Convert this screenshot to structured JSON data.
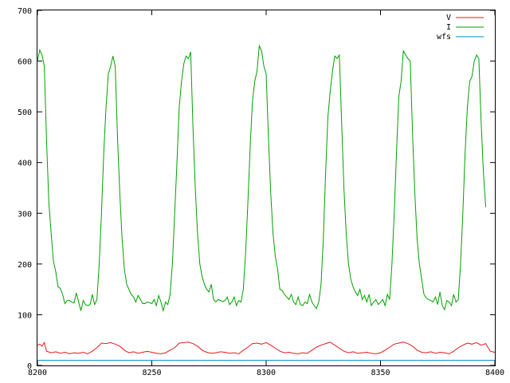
{
  "chart_data": {
    "type": "line",
    "title": "",
    "xlabel": "",
    "ylabel": "",
    "xlim": [
      8200,
      8400
    ],
    "ylim": [
      0,
      700
    ],
    "grid": false,
    "legend_position": "top-right",
    "x_ticks": [
      8200,
      8250,
      8300,
      8350,
      8400
    ],
    "y_ticks": [
      0,
      100,
      200,
      300,
      400,
      500,
      600,
      700
    ],
    "x_tick_labels": [
      "8200",
      "8250",
      "8300",
      "8350",
      "8400"
    ],
    "y_tick_labels": [
      "0",
      "100",
      "200",
      "300",
      "400",
      "500",
      "600",
      "700"
    ],
    "series": [
      {
        "name": "V",
        "color": "#e41a1c",
        "points": [
          [
            8200,
            40
          ],
          [
            8201,
            42
          ],
          [
            8202,
            38
          ],
          [
            8203,
            45
          ],
          [
            8204,
            28
          ],
          [
            8206,
            25
          ],
          [
            8208,
            27
          ],
          [
            8210,
            24
          ],
          [
            8212,
            26
          ],
          [
            8214,
            23
          ],
          [
            8216,
            25
          ],
          [
            8218,
            24
          ],
          [
            8220,
            26
          ],
          [
            8222,
            23
          ],
          [
            8224,
            28
          ],
          [
            8226,
            35
          ],
          [
            8228,
            44
          ],
          [
            8230,
            43
          ],
          [
            8232,
            45
          ],
          [
            8234,
            42
          ],
          [
            8236,
            38
          ],
          [
            8238,
            30
          ],
          [
            8240,
            25
          ],
          [
            8242,
            27
          ],
          [
            8244,
            24
          ],
          [
            8246,
            26
          ],
          [
            8248,
            28
          ],
          [
            8250,
            26
          ],
          [
            8252,
            24
          ],
          [
            8254,
            23
          ],
          [
            8256,
            25
          ],
          [
            8258,
            30
          ],
          [
            8260,
            35
          ],
          [
            8262,
            44
          ],
          [
            8264,
            45
          ],
          [
            8266,
            46
          ],
          [
            8268,
            43
          ],
          [
            8270,
            38
          ],
          [
            8272,
            30
          ],
          [
            8274,
            26
          ],
          [
            8276,
            24
          ],
          [
            8278,
            25
          ],
          [
            8280,
            27
          ],
          [
            8282,
            26
          ],
          [
            8284,
            24
          ],
          [
            8286,
            25
          ],
          [
            8288,
            23
          ],
          [
            8290,
            30
          ],
          [
            8292,
            36
          ],
          [
            8294,
            43
          ],
          [
            8296,
            44
          ],
          [
            8298,
            42
          ],
          [
            8300,
            45
          ],
          [
            8302,
            40
          ],
          [
            8304,
            34
          ],
          [
            8306,
            28
          ],
          [
            8308,
            25
          ],
          [
            8310,
            26
          ],
          [
            8312,
            24
          ],
          [
            8314,
            23
          ],
          [
            8316,
            25
          ],
          [
            8318,
            24
          ],
          [
            8320,
            30
          ],
          [
            8322,
            36
          ],
          [
            8324,
            40
          ],
          [
            8326,
            43
          ],
          [
            8328,
            46
          ],
          [
            8330,
            40
          ],
          [
            8332,
            34
          ],
          [
            8334,
            28
          ],
          [
            8336,
            25
          ],
          [
            8338,
            27
          ],
          [
            8340,
            24
          ],
          [
            8342,
            25
          ],
          [
            8344,
            26
          ],
          [
            8346,
            24
          ],
          [
            8348,
            23
          ],
          [
            8350,
            25
          ],
          [
            8352,
            30
          ],
          [
            8354,
            36
          ],
          [
            8356,
            42
          ],
          [
            8358,
            44
          ],
          [
            8360,
            46
          ],
          [
            8362,
            43
          ],
          [
            8364,
            38
          ],
          [
            8366,
            30
          ],
          [
            8368,
            26
          ],
          [
            8370,
            25
          ],
          [
            8372,
            27
          ],
          [
            8374,
            24
          ],
          [
            8376,
            26
          ],
          [
            8378,
            25
          ],
          [
            8380,
            23
          ],
          [
            8382,
            28
          ],
          [
            8384,
            35
          ],
          [
            8386,
            40
          ],
          [
            8388,
            44
          ],
          [
            8390,
            42
          ],
          [
            8392,
            45
          ],
          [
            8394,
            40
          ],
          [
            8396,
            43
          ],
          [
            8398,
            28
          ],
          [
            8400,
            26
          ]
        ]
      },
      {
        "name": "I",
        "color": "#00a000",
        "points": [
          [
            8200,
            600
          ],
          [
            8201,
            622
          ],
          [
            8202,
            612
          ],
          [
            8203,
            590
          ],
          [
            8204,
            440
          ],
          [
            8205,
            320
          ],
          [
            8206,
            260
          ],
          [
            8207,
            205
          ],
          [
            8208,
            185
          ],
          [
            8209,
            155
          ],
          [
            8210,
            152
          ],
          [
            8211,
            140
          ],
          [
            8212,
            122
          ],
          [
            8213,
            128
          ],
          [
            8214,
            128
          ],
          [
            8215,
            125
          ],
          [
            8216,
            123
          ],
          [
            8217,
            143
          ],
          [
            8218,
            125
          ],
          [
            8219,
            108
          ],
          [
            8220,
            128
          ],
          [
            8221,
            120
          ],
          [
            8222,
            118
          ],
          [
            8223,
            120
          ],
          [
            8224,
            140
          ],
          [
            8225,
            120
          ],
          [
            8226,
            130
          ],
          [
            8227,
            200
          ],
          [
            8228,
            300
          ],
          [
            8229,
            420
          ],
          [
            8230,
            510
          ],
          [
            8231,
            575
          ],
          [
            8232,
            590
          ],
          [
            8233,
            610
          ],
          [
            8234,
            590
          ],
          [
            8235,
            450
          ],
          [
            8236,
            340
          ],
          [
            8237,
            250
          ],
          [
            8238,
            190
          ],
          [
            8239,
            160
          ],
          [
            8240,
            150
          ],
          [
            8241,
            140
          ],
          [
            8242,
            135
          ],
          [
            8243,
            125
          ],
          [
            8244,
            138
          ],
          [
            8245,
            130
          ],
          [
            8246,
            122
          ],
          [
            8247,
            122
          ],
          [
            8248,
            125
          ],
          [
            8249,
            124
          ],
          [
            8250,
            122
          ],
          [
            8251,
            130
          ],
          [
            8252,
            118
          ],
          [
            8253,
            138
          ],
          [
            8254,
            125
          ],
          [
            8255,
            108
          ],
          [
            8256,
            125
          ],
          [
            8257,
            120
          ],
          [
            8258,
            140
          ],
          [
            8259,
            200
          ],
          [
            8260,
            300
          ],
          [
            8261,
            400
          ],
          [
            8262,
            510
          ],
          [
            8263,
            560
          ],
          [
            8264,
            595
          ],
          [
            8265,
            610
          ],
          [
            8266,
            605
          ],
          [
            8267,
            618
          ],
          [
            8268,
            470
          ],
          [
            8269,
            350
          ],
          [
            8270,
            260
          ],
          [
            8271,
            200
          ],
          [
            8272,
            175
          ],
          [
            8273,
            160
          ],
          [
            8274,
            150
          ],
          [
            8275,
            145
          ],
          [
            8276,
            160
          ],
          [
            8277,
            130
          ],
          [
            8278,
            125
          ],
          [
            8279,
            130
          ],
          [
            8280,
            128
          ],
          [
            8281,
            126
          ],
          [
            8282,
            128
          ],
          [
            8283,
            135
          ],
          [
            8284,
            120
          ],
          [
            8285,
            125
          ],
          [
            8286,
            135
          ],
          [
            8287,
            118
          ],
          [
            8288,
            128
          ],
          [
            8289,
            125
          ],
          [
            8290,
            150
          ],
          [
            8291,
            220
          ],
          [
            8292,
            320
          ],
          [
            8293,
            430
          ],
          [
            8294,
            520
          ],
          [
            8295,
            560
          ],
          [
            8296,
            580
          ],
          [
            8297,
            630
          ],
          [
            8298,
            620
          ],
          [
            8299,
            590
          ],
          [
            8300,
            575
          ],
          [
            8301,
            450
          ],
          [
            8302,
            340
          ],
          [
            8303,
            260
          ],
          [
            8304,
            215
          ],
          [
            8305,
            190
          ],
          [
            8306,
            150
          ],
          [
            8307,
            148
          ],
          [
            8308,
            140
          ],
          [
            8309,
            135
          ],
          [
            8310,
            130
          ],
          [
            8311,
            140
          ],
          [
            8312,
            125
          ],
          [
            8313,
            120
          ],
          [
            8314,
            135
          ],
          [
            8315,
            120
          ],
          [
            8316,
            118
          ],
          [
            8317,
            125
          ],
          [
            8318,
            122
          ],
          [
            8319,
            140
          ],
          [
            8320,
            125
          ],
          [
            8321,
            118
          ],
          [
            8322,
            112
          ],
          [
            8323,
            125
          ],
          [
            8324,
            160
          ],
          [
            8325,
            250
          ],
          [
            8326,
            380
          ],
          [
            8327,
            490
          ],
          [
            8328,
            540
          ],
          [
            8329,
            580
          ],
          [
            8330,
            610
          ],
          [
            8331,
            605
          ],
          [
            8332,
            612
          ],
          [
            8333,
            480
          ],
          [
            8334,
            350
          ],
          [
            8335,
            260
          ],
          [
            8336,
            200
          ],
          [
            8337,
            170
          ],
          [
            8338,
            155
          ],
          [
            8339,
            145
          ],
          [
            8340,
            138
          ],
          [
            8341,
            150
          ],
          [
            8342,
            130
          ],
          [
            8343,
            138
          ],
          [
            8344,
            125
          ],
          [
            8345,
            140
          ],
          [
            8346,
            118
          ],
          [
            8347,
            125
          ],
          [
            8348,
            130
          ],
          [
            8349,
            120
          ],
          [
            8350,
            125
          ],
          [
            8351,
            130
          ],
          [
            8352,
            118
          ],
          [
            8353,
            140
          ],
          [
            8354,
            130
          ],
          [
            8355,
            200
          ],
          [
            8356,
            300
          ],
          [
            8357,
            420
          ],
          [
            8358,
            530
          ],
          [
            8359,
            560
          ],
          [
            8360,
            620
          ],
          [
            8361,
            612
          ],
          [
            8362,
            605
          ],
          [
            8363,
            600
          ],
          [
            8364,
            460
          ],
          [
            8365,
            340
          ],
          [
            8366,
            250
          ],
          [
            8367,
            200
          ],
          [
            8368,
            170
          ],
          [
            8369,
            140
          ],
          [
            8370,
            133
          ],
          [
            8371,
            130
          ],
          [
            8372,
            128
          ],
          [
            8373,
            125
          ],
          [
            8374,
            135
          ],
          [
            8375,
            120
          ],
          [
            8376,
            145
          ],
          [
            8377,
            118
          ],
          [
            8378,
            110
          ],
          [
            8379,
            128
          ],
          [
            8380,
            125
          ],
          [
            8381,
            118
          ],
          [
            8382,
            140
          ],
          [
            8383,
            125
          ],
          [
            8384,
            130
          ],
          [
            8385,
            200
          ],
          [
            8386,
            300
          ],
          [
            8387,
            420
          ],
          [
            8388,
            510
          ],
          [
            8389,
            560
          ],
          [
            8390,
            570
          ],
          [
            8391,
            600
          ],
          [
            8392,
            612
          ],
          [
            8393,
            605
          ],
          [
            8394,
            480
          ],
          [
            8395,
            380
          ],
          [
            8396,
            312
          ]
        ]
      },
      {
        "name": "wfs",
        "color": "#0088cc",
        "points": [
          [
            8200,
            10
          ],
          [
            8220,
            10
          ],
          [
            8240,
            10
          ],
          [
            8260,
            10
          ],
          [
            8280,
            10
          ],
          [
            8300,
            10
          ],
          [
            8320,
            10
          ],
          [
            8340,
            10
          ],
          [
            8360,
            10
          ],
          [
            8380,
            10
          ],
          [
            8400,
            10
          ]
        ]
      }
    ]
  }
}
